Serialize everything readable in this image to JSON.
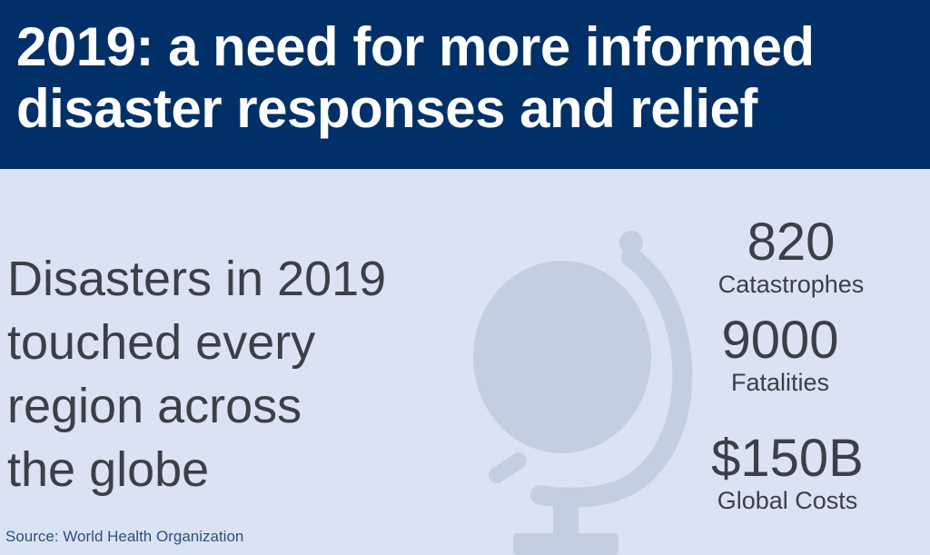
{
  "header": {
    "title_line1": "2019: a need for more informed",
    "title_line2": "disaster responses and relief",
    "background_color": "#003067"
  },
  "main": {
    "headline_lines": [
      "Disasters in 2019",
      "touched every",
      "region across",
      "the globe"
    ],
    "illustration": "globe-icon",
    "background_color": "#dae3f3"
  },
  "stats": [
    {
      "value": "820",
      "label": "Catastrophes"
    },
    {
      "value": "9000",
      "label": "Fatalities"
    },
    {
      "value": "$150B",
      "label": "Global Costs"
    }
  ],
  "footer": {
    "source": "Source: World Health Organization"
  }
}
